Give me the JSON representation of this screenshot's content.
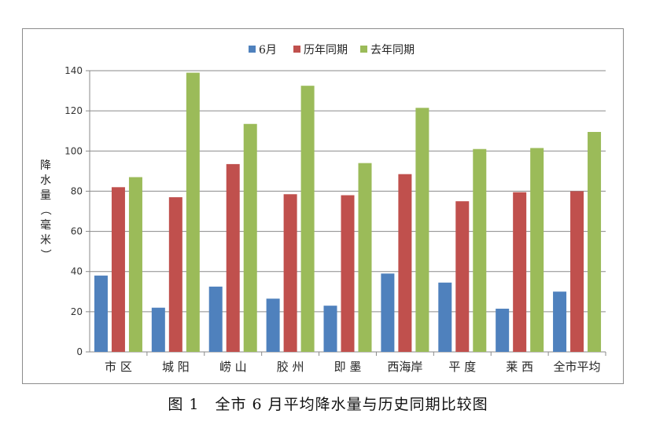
{
  "caption": "图 1　全市 6 月平均降水量与历史同期比较图",
  "chart_data": {
    "type": "bar",
    "title": "",
    "ylabel": "降水量（毫米）",
    "ylim": [
      0,
      140
    ],
    "yticks": [
      0,
      20,
      40,
      60,
      80,
      100,
      120,
      140
    ],
    "grid": true,
    "legend_position": "top",
    "categories": [
      "市 区",
      "城 阳",
      "崂 山",
      "胶 州",
      "即 墨",
      "西海岸",
      "平 度",
      "莱 西",
      "全市平均"
    ],
    "series": [
      {
        "name": "6月",
        "color": "#4f81bd",
        "values": [
          38,
          22,
          32.5,
          26.5,
          23,
          39,
          34.5,
          21.5,
          30
        ]
      },
      {
        "name": "历年同期",
        "color": "#c0504d",
        "values": [
          82,
          77,
          93.5,
          78.5,
          78,
          88.5,
          75,
          79.5,
          80
        ]
      },
      {
        "name": "去年同期",
        "color": "#9bbb59",
        "values": [
          87,
          139,
          113.5,
          132.5,
          94,
          121.5,
          101,
          101.5,
          109.5
        ]
      }
    ]
  }
}
